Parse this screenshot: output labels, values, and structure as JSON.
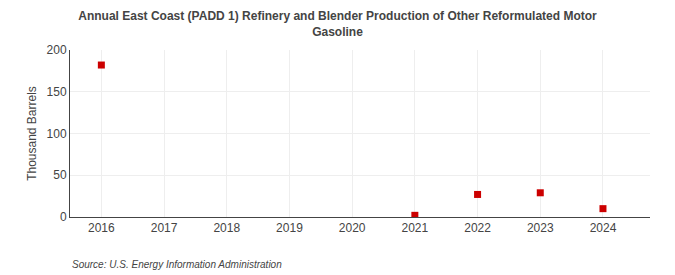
{
  "chart_data": {
    "type": "scatter",
    "title": "Annual East Coast (PADD 1) Refinery and Blender Production of Other Reformulated Motor\nGasoline",
    "ylabel": "Thousand Barrels",
    "annotations": [
      "Source: U.S. Energy Information Administration"
    ],
    "x": [
      2016,
      2017,
      2018,
      2019,
      2020,
      2021,
      2022,
      2023,
      2024
    ],
    "values": [
      182,
      null,
      null,
      null,
      null,
      2,
      27,
      29,
      10
    ],
    "color": "#cc0000",
    "marker": "square",
    "xlim": [
      2015.5,
      2024.75
    ],
    "xticks": [
      2016,
      2017,
      2018,
      2019,
      2020,
      2021,
      2022,
      2023,
      2024
    ],
    "ylim": [
      0,
      200
    ],
    "yticks": [
      0,
      50,
      100,
      150,
      200
    ],
    "grid": true
  }
}
